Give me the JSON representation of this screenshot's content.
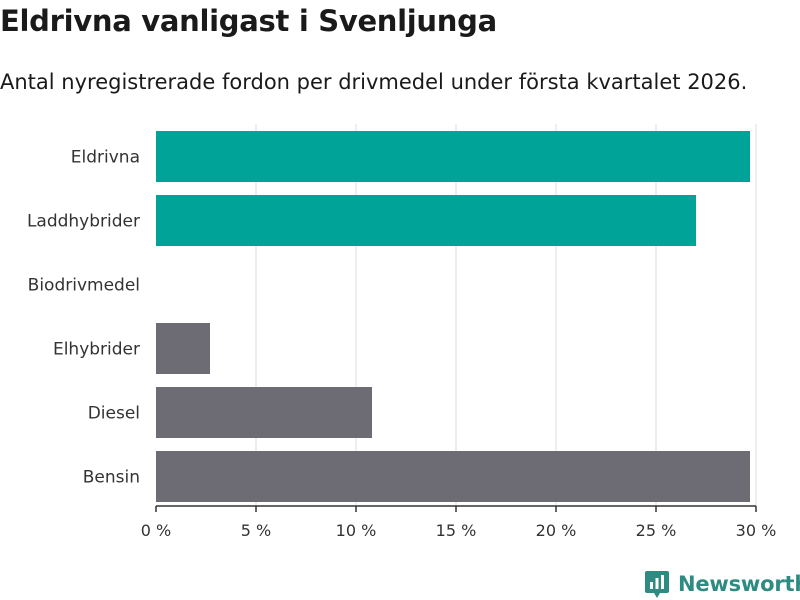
{
  "title": "Eldrivna vanligast i Svenljunga",
  "subtitle": "Antal nyregistrerade fordon per drivmedel under första kvartalet 2026.",
  "brand": {
    "name": "Newsworthy",
    "icon": "newsworthy-logo-icon"
  },
  "colors": {
    "green": "#00a398",
    "gray": "#6d6c74",
    "grid": "#dddddd",
    "axis": "#333333",
    "brand": "#2e8b82"
  },
  "chart_data": {
    "type": "bar",
    "orientation": "horizontal",
    "categories": [
      "Eldrivna",
      "Laddhybrider",
      "Biodrivmedel",
      "Elhybrider",
      "Diesel",
      "Bensin"
    ],
    "values": [
      29.7,
      27.0,
      0,
      2.7,
      10.8,
      29.7
    ],
    "unit": "%",
    "bar_colors": [
      "green",
      "green",
      "gray",
      "gray",
      "gray",
      "gray"
    ],
    "xlim": [
      0,
      30
    ],
    "xticks": [
      0,
      5,
      10,
      15,
      20,
      25,
      30
    ],
    "xtick_labels": [
      "0 %",
      "5 %",
      "10 %",
      "15 %",
      "20 %",
      "25 %",
      "30 %"
    ],
    "grid": true,
    "xlabel": "",
    "ylabel": ""
  }
}
